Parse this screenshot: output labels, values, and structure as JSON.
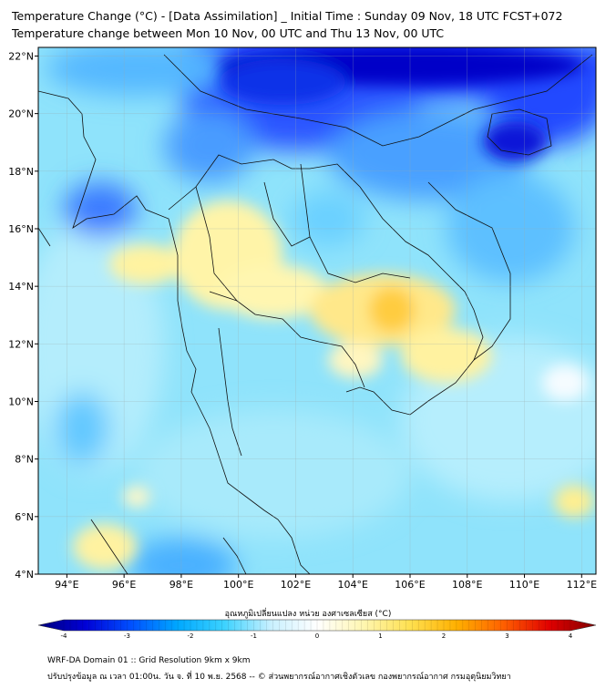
{
  "title_line1": "Temperature Change (°C) - [Data Assimilation] _ Initial Time : Sunday 09 Nov, 18 UTC FCST+072",
  "title_line2": "Temperature change between Mon 10 Nov, 00 UTC and Thu 13 Nov, 00 UTC",
  "map": {
    "lon_range": [
      93,
      112.5
    ],
    "lat_range": [
      4,
      22.3
    ],
    "lon_ticks": [
      "94°E",
      "96°E",
      "98°E",
      "100°E",
      "102°E",
      "104°E",
      "106°E",
      "108°E",
      "110°E",
      "112°E"
    ],
    "lon_tick_values": [
      94,
      96,
      98,
      100,
      102,
      104,
      106,
      108,
      110,
      112
    ],
    "lat_ticks": [
      "22°N",
      "20°N",
      "18°N",
      "16°N",
      "14°N",
      "12°N",
      "10°N",
      "8°N",
      "6°N",
      "4°N"
    ],
    "lat_tick_values": [
      22,
      20,
      18,
      16,
      14,
      12,
      10,
      8,
      6,
      4
    ],
    "grid": true
  },
  "colorbar": {
    "title": "อุณหภูมิเปลี่ยนแปลง หน่วย องศาเซลเซียส (°C)",
    "range": [
      -4,
      4
    ],
    "tick_labels": [
      "-4",
      "-3",
      "-2",
      "-1",
      "0",
      "1",
      "2",
      "3",
      "4"
    ],
    "colors": [
      "#00007a",
      "#0000d6",
      "#0050ff",
      "#00a8ff",
      "#3cd2ff",
      "#c8f0ff",
      "#ffffff",
      "#fff6b0",
      "#ffe050",
      "#ffb000",
      "#ff6000",
      "#e00000",
      "#800000"
    ]
  },
  "footer_line1": "WRF-DA Domain 01 :: Grid Resolution 9km x 9km",
  "footer_line2": "ปรับปรุงข้อมูล ณ เวลา 01:00น. วัน จ. ที่ 10 พ.ย. 2568 -- © ส่วนพยากรณ์อากาศเชิงตัวเลข กองพยากรณ์อากาศ กรมอุตุนิยมวิทยา"
}
